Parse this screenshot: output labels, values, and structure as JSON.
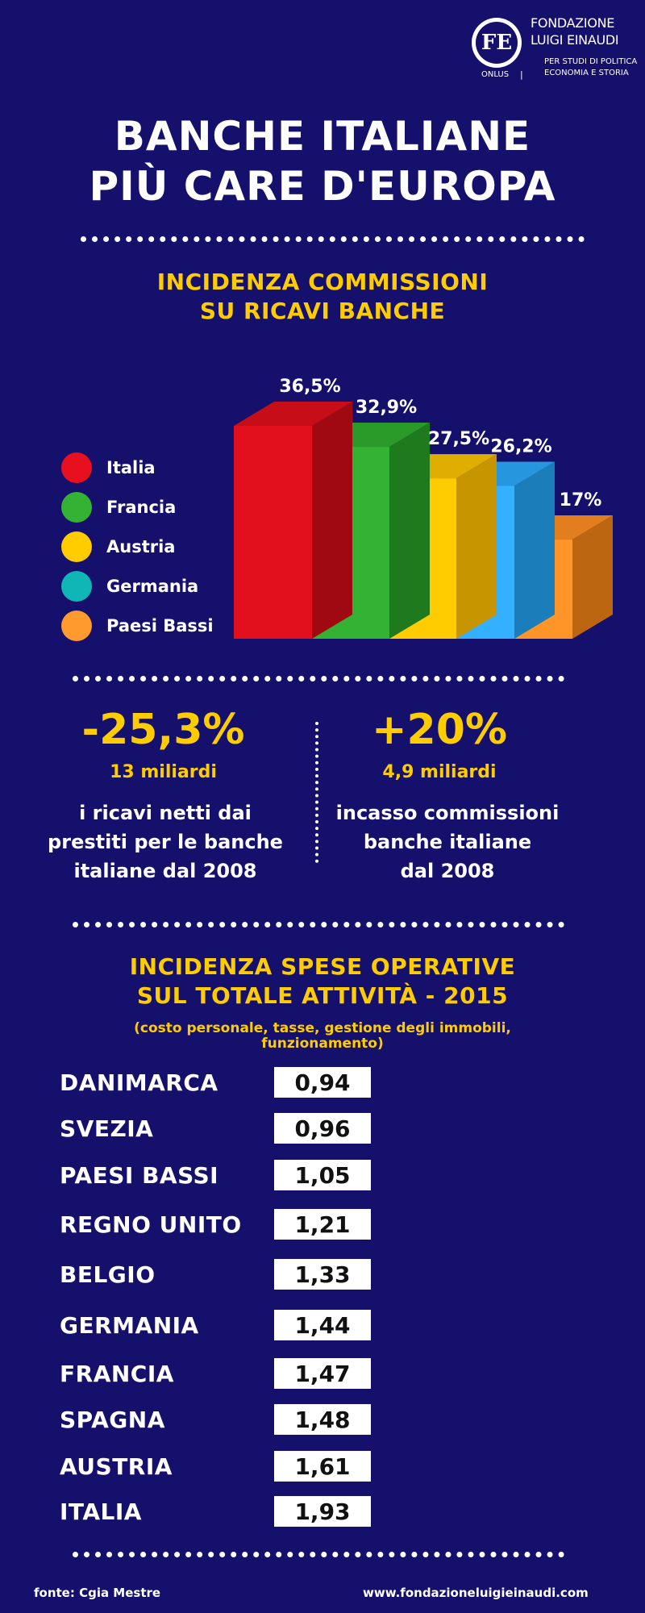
{
  "logo": {
    "mark": "FE",
    "name_line1": "FONDAZIONE",
    "name_line2": "LUIGI EINAUDI",
    "sub_line1": "PER STUDI DI POLITICA",
    "sub_line2": "ECONOMIA E STORIA",
    "onlus": "ONLUS"
  },
  "title_line1": "BANCHE ITALIANE",
  "title_line2": "PIÙ CARE D'EUROPA",
  "chart_data": {
    "type": "bar",
    "title_line1": "INCIDENZA COMMISSIONI",
    "title_line2": "SU RICAVI BANCHE",
    "categories": [
      "Italia",
      "Francia",
      "Austria",
      "Germania",
      "Paesi Bassi"
    ],
    "values": [
      36.5,
      32.9,
      27.5,
      26.2,
      17
    ],
    "labels": [
      "36,5%",
      "32,9%",
      "27,5%",
      "26,2%",
      "17%"
    ],
    "legend_colors": [
      "#e8101e",
      "#34b233",
      "#ffcc00",
      "#10b5b5",
      "#ff9a2e"
    ],
    "bar_colors": [
      {
        "front": "#e2101d",
        "top": "#c70d18",
        "side": "#a10912"
      },
      {
        "front": "#34b233",
        "top": "#2a9a28",
        "side": "#1f7a1d"
      },
      {
        "front": "#ffcc00",
        "top": "#e0ae00",
        "side": "#c69500"
      },
      {
        "front": "#33b0ff",
        "top": "#2696de",
        "side": "#1b7dba"
      },
      {
        "front": "#ff9528",
        "top": "#e27e1d",
        "side": "#bc6612"
      }
    ]
  },
  "stats": {
    "left": {
      "big": "-25,3%",
      "sub": "13 miliardi",
      "line1": "i ricavi netti dai",
      "line2": "prestiti per le banche",
      "line3": "italiane dal 2008"
    },
    "right": {
      "big": "+20%",
      "sub": "4,9 miliardi",
      "line1": "incasso commissioni",
      "line2": "banche italiane",
      "line3": "dal 2008"
    }
  },
  "spese": {
    "title_line1": "INCIDENZA SPESE OPERATIVE",
    "title_line2": "SUL TOTALE ATTIVITÀ - 2015",
    "note_line1": "(costo personale, tasse, gestione degli immobili,",
    "note_line2": "funzionamento)",
    "rows": [
      {
        "country": "DANIMARCA",
        "value": "0,94"
      },
      {
        "country": "SVEZIA",
        "value": "0,96"
      },
      {
        "country": "PAESI BASSI",
        "value": "1,05"
      },
      {
        "country": "REGNO UNITO",
        "value": "1,21"
      },
      {
        "country": "BELGIO",
        "value": "1,33"
      },
      {
        "country": "GERMANIA",
        "value": "1,44"
      },
      {
        "country": "FRANCIA",
        "value": "1,47"
      },
      {
        "country": "SPAGNA",
        "value": "1,48"
      },
      {
        "country": "AUSTRIA",
        "value": "1,61"
      },
      {
        "country": "ITALIA",
        "value": "1,93"
      }
    ]
  },
  "footer": {
    "source": "fonte: Cgia Mestre",
    "website": "www.fondazioneluigieinaudi.com"
  }
}
